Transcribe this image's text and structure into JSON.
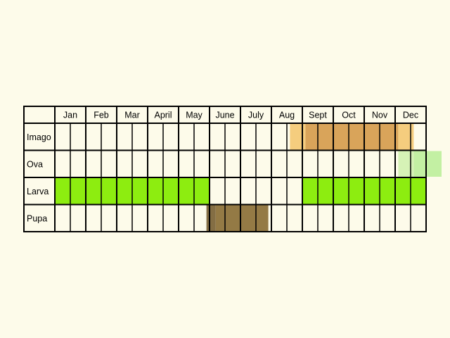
{
  "months": [
    "Jan",
    "Feb",
    "Mar",
    "April",
    "May",
    "June",
    "July",
    "Aug",
    "Sept",
    "Oct",
    "Nov",
    "Dec"
  ],
  "subdivisions_per_month": 2,
  "stages": [
    {
      "name": "Imago",
      "bars": [
        {
          "start": 7.6,
          "end": 8.1,
          "color": "#f5cd7e"
        },
        {
          "start": 8.1,
          "end": 11.1,
          "color": "#d9a45a"
        },
        {
          "start": 11.1,
          "end": 11.6,
          "color": "#f5cd7e"
        }
      ]
    },
    {
      "name": "Ova",
      "bars": [
        {
          "start": 11.1,
          "end": 11.6,
          "color": "#d6f2b6"
        },
        {
          "start": 11.6,
          "end": 12.5,
          "color": "#c3f0a3"
        }
      ]
    },
    {
      "name": "Larva",
      "bars": [
        {
          "start": 0,
          "end": 5.0,
          "color": "#8ded10"
        },
        {
          "start": 8.0,
          "end": 12.0,
          "color": "#8ded10"
        }
      ]
    },
    {
      "name": "Pupa",
      "bars": [
        {
          "start": 4.9,
          "end": 5.2,
          "color": "#846e44"
        },
        {
          "start": 5.2,
          "end": 6.9,
          "color": "#947a45"
        }
      ]
    }
  ]
}
